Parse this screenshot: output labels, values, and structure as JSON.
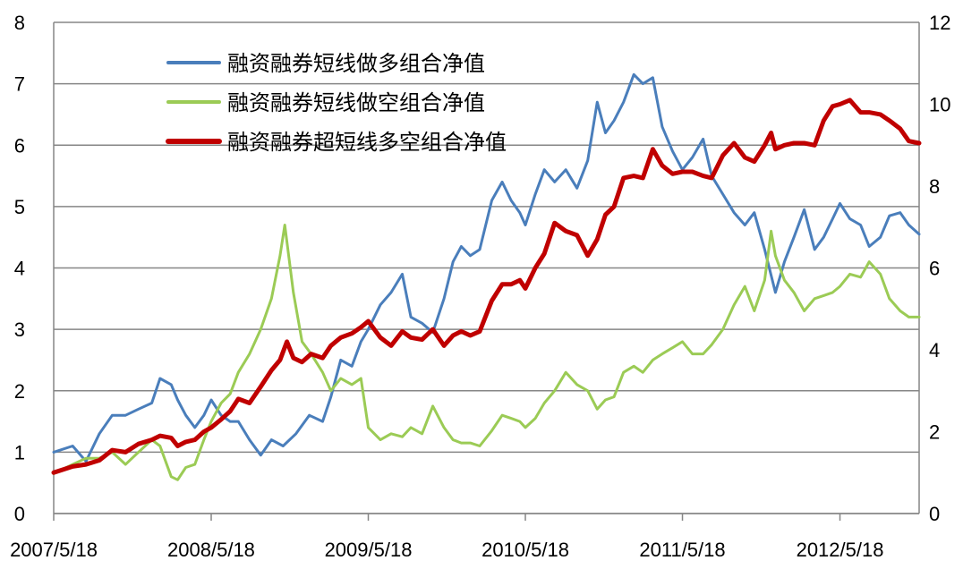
{
  "chart_data": {
    "type": "line",
    "title": "",
    "xlabel": "",
    "ylabel": "",
    "x_ticks": [
      "2007/5/18",
      "2008/5/18",
      "2009/5/18",
      "2010/5/18",
      "2011/5/18",
      "2012/5/18"
    ],
    "x_range": [
      "2007/5/18",
      "2012/11/18"
    ],
    "y_left": {
      "ylim": [
        0,
        8
      ],
      "ticks": [
        0,
        1,
        2,
        3,
        4,
        5,
        6,
        7,
        8
      ]
    },
    "y_right": {
      "ylim": [
        0,
        12
      ],
      "ticks": [
        0,
        2,
        4,
        6,
        8,
        10,
        12
      ]
    },
    "grid": "horizontal",
    "legend_position": "top-left",
    "series": [
      {
        "name": "融资融券短线做多组合净值",
        "axis": "left",
        "color": "#4a7ebb",
        "points": [
          [
            "2007/5/18",
            1.0
          ],
          [
            "2007/7/1",
            1.1
          ],
          [
            "2007/8/1",
            0.85
          ],
          [
            "2007/9/1",
            1.3
          ],
          [
            "2007/10/1",
            1.6
          ],
          [
            "2007/11/1",
            1.6
          ],
          [
            "2007/12/1",
            1.7
          ],
          [
            "2008/1/1",
            1.8
          ],
          [
            "2008/1/20",
            2.2
          ],
          [
            "2008/2/15",
            2.1
          ],
          [
            "2008/3/1",
            1.85
          ],
          [
            "2008/3/20",
            1.6
          ],
          [
            "2008/4/10",
            1.4
          ],
          [
            "2008/5/1",
            1.6
          ],
          [
            "2008/5/18",
            1.85
          ],
          [
            "2008/6/10",
            1.6
          ],
          [
            "2008/7/1",
            1.5
          ],
          [
            "2008/7/20",
            1.5
          ],
          [
            "2008/8/15",
            1.2
          ],
          [
            "2008/9/10",
            0.95
          ],
          [
            "2008/10/5",
            1.2
          ],
          [
            "2008/11/1",
            1.1
          ],
          [
            "2008/12/1",
            1.3
          ],
          [
            "2009/1/1",
            1.6
          ],
          [
            "2009/2/1",
            1.5
          ],
          [
            "2009/2/20",
            1.9
          ],
          [
            "2009/3/15",
            2.5
          ],
          [
            "2009/4/10",
            2.4
          ],
          [
            "2009/5/1",
            2.8
          ],
          [
            "2009/5/18",
            3.0
          ],
          [
            "2009/6/15",
            3.4
          ],
          [
            "2009/7/10",
            3.6
          ],
          [
            "2009/8/5",
            3.9
          ],
          [
            "2009/8/25",
            3.2
          ],
          [
            "2009/9/20",
            3.1
          ],
          [
            "2009/10/15",
            2.95
          ],
          [
            "2009/11/10",
            3.5
          ],
          [
            "2009/12/1",
            4.1
          ],
          [
            "2009/12/20",
            4.35
          ],
          [
            "2010/1/10",
            4.2
          ],
          [
            "2010/2/1",
            4.3
          ],
          [
            "2010/3/1",
            5.1
          ],
          [
            "2010/3/25",
            5.4
          ],
          [
            "2010/4/15",
            5.1
          ],
          [
            "2010/5/5",
            4.9
          ],
          [
            "2010/5/18",
            4.7
          ],
          [
            "2010/6/10",
            5.2
          ],
          [
            "2010/7/1",
            5.6
          ],
          [
            "2010/7/25",
            5.4
          ],
          [
            "2010/8/20",
            5.6
          ],
          [
            "2010/9/15",
            5.3
          ],
          [
            "2010/10/10",
            5.75
          ],
          [
            "2010/11/1",
            6.7
          ],
          [
            "2010/11/20",
            6.2
          ],
          [
            "2010/12/10",
            6.4
          ],
          [
            "2011/1/1",
            6.7
          ],
          [
            "2011/1/25",
            7.15
          ],
          [
            "2011/2/15",
            7.0
          ],
          [
            "2011/3/10",
            7.1
          ],
          [
            "2011/4/1",
            6.3
          ],
          [
            "2011/4/25",
            5.9
          ],
          [
            "2011/5/18",
            5.6
          ],
          [
            "2011/6/10",
            5.8
          ],
          [
            "2011/7/5",
            6.1
          ],
          [
            "2011/7/25",
            5.5
          ],
          [
            "2011/8/20",
            5.2
          ],
          [
            "2011/9/15",
            4.9
          ],
          [
            "2011/10/10",
            4.7
          ],
          [
            "2011/11/1",
            4.9
          ],
          [
            "2011/11/25",
            4.3
          ],
          [
            "2011/12/20",
            3.6
          ],
          [
            "2012/1/10",
            4.1
          ],
          [
            "2012/2/1",
            4.5
          ],
          [
            "2012/2/25",
            4.95
          ],
          [
            "2012/3/20",
            4.3
          ],
          [
            "2012/4/10",
            4.5
          ],
          [
            "2012/5/1",
            4.8
          ],
          [
            "2012/5/18",
            5.05
          ],
          [
            "2012/6/10",
            4.8
          ],
          [
            "2012/7/5",
            4.7
          ],
          [
            "2012/7/25",
            4.35
          ],
          [
            "2012/8/20",
            4.5
          ],
          [
            "2012/9/10",
            4.85
          ],
          [
            "2012/10/5",
            4.9
          ],
          [
            "2012/10/25",
            4.7
          ],
          [
            "2012/11/18",
            4.55
          ]
        ]
      },
      {
        "name": "融资融券短线做空组合净值",
        "axis": "left",
        "color": "#9bcb55",
        "points": [
          [
            "2007/5/18",
            0.65
          ],
          [
            "2007/7/1",
            0.8
          ],
          [
            "2007/8/1",
            0.9
          ],
          [
            "2007/9/1",
            0.9
          ],
          [
            "2007/10/1",
            1.0
          ],
          [
            "2007/11/1",
            0.8
          ],
          [
            "2007/12/1",
            1.0
          ],
          [
            "2008/1/1",
            1.2
          ],
          [
            "2008/1/20",
            1.1
          ],
          [
            "2008/2/15",
            0.6
          ],
          [
            "2008/3/1",
            0.55
          ],
          [
            "2008/3/20",
            0.75
          ],
          [
            "2008/4/10",
            0.8
          ],
          [
            "2008/5/1",
            1.2
          ],
          [
            "2008/5/18",
            1.5
          ],
          [
            "2008/6/10",
            1.8
          ],
          [
            "2008/7/1",
            1.95
          ],
          [
            "2008/7/20",
            2.3
          ],
          [
            "2008/8/15",
            2.6
          ],
          [
            "2008/9/10",
            3.0
          ],
          [
            "2008/10/5",
            3.5
          ],
          [
            "2008/10/25",
            4.2
          ],
          [
            "2008/11/5",
            4.7
          ],
          [
            "2008/11/25",
            3.6
          ],
          [
            "2008/12/15",
            2.8
          ],
          [
            "2009/1/5",
            2.6
          ],
          [
            "2009/2/1",
            2.3
          ],
          [
            "2009/2/20",
            2.0
          ],
          [
            "2009/3/15",
            2.2
          ],
          [
            "2009/4/10",
            2.1
          ],
          [
            "2009/5/1",
            2.2
          ],
          [
            "2009/5/18",
            1.4
          ],
          [
            "2009/6/15",
            1.2
          ],
          [
            "2009/7/10",
            1.3
          ],
          [
            "2009/8/5",
            1.25
          ],
          [
            "2009/8/25",
            1.4
          ],
          [
            "2009/9/20",
            1.3
          ],
          [
            "2009/10/15",
            1.75
          ],
          [
            "2009/11/10",
            1.4
          ],
          [
            "2009/12/1",
            1.2
          ],
          [
            "2009/12/20",
            1.15
          ],
          [
            "2010/1/10",
            1.15
          ],
          [
            "2010/2/1",
            1.1
          ],
          [
            "2010/3/1",
            1.35
          ],
          [
            "2010/3/25",
            1.6
          ],
          [
            "2010/4/15",
            1.55
          ],
          [
            "2010/5/5",
            1.5
          ],
          [
            "2010/5/18",
            1.4
          ],
          [
            "2010/6/10",
            1.55
          ],
          [
            "2010/7/1",
            1.8
          ],
          [
            "2010/7/25",
            2.0
          ],
          [
            "2010/8/20",
            2.3
          ],
          [
            "2010/9/15",
            2.1
          ],
          [
            "2010/10/10",
            2.0
          ],
          [
            "2010/11/1",
            1.7
          ],
          [
            "2010/11/20",
            1.85
          ],
          [
            "2010/12/10",
            1.9
          ],
          [
            "2011/1/1",
            2.3
          ],
          [
            "2011/1/25",
            2.4
          ],
          [
            "2011/2/15",
            2.3
          ],
          [
            "2011/3/10",
            2.5
          ],
          [
            "2011/4/1",
            2.6
          ],
          [
            "2011/4/25",
            2.7
          ],
          [
            "2011/5/18",
            2.8
          ],
          [
            "2011/6/10",
            2.6
          ],
          [
            "2011/7/5",
            2.6
          ],
          [
            "2011/7/25",
            2.75
          ],
          [
            "2011/8/20",
            3.0
          ],
          [
            "2011/9/15",
            3.4
          ],
          [
            "2011/10/10",
            3.7
          ],
          [
            "2011/11/1",
            3.3
          ],
          [
            "2011/11/25",
            3.8
          ],
          [
            "2011/12/10",
            4.6
          ],
          [
            "2011/12/20",
            4.2
          ],
          [
            "2012/1/10",
            3.8
          ],
          [
            "2012/2/1",
            3.6
          ],
          [
            "2012/2/25",
            3.3
          ],
          [
            "2012/3/20",
            3.5
          ],
          [
            "2012/4/10",
            3.55
          ],
          [
            "2012/5/1",
            3.6
          ],
          [
            "2012/5/18",
            3.7
          ],
          [
            "2012/6/10",
            3.9
          ],
          [
            "2012/7/5",
            3.85
          ],
          [
            "2012/7/25",
            4.1
          ],
          [
            "2012/8/20",
            3.9
          ],
          [
            "2012/9/10",
            3.5
          ],
          [
            "2012/10/5",
            3.3
          ],
          [
            "2012/10/25",
            3.2
          ],
          [
            "2012/11/18",
            3.2
          ]
        ]
      },
      {
        "name": "融资融券超短线多空组合净值",
        "axis": "right",
        "color": "#c00000",
        "points": [
          [
            "2007/5/18",
            1.0
          ],
          [
            "2007/7/1",
            1.15
          ],
          [
            "2007/8/1",
            1.2
          ],
          [
            "2007/9/1",
            1.3
          ],
          [
            "2007/10/1",
            1.55
          ],
          [
            "2007/11/1",
            1.5
          ],
          [
            "2007/12/1",
            1.7
          ],
          [
            "2008/1/1",
            1.8
          ],
          [
            "2008/1/20",
            1.9
          ],
          [
            "2008/2/15",
            1.85
          ],
          [
            "2008/3/1",
            1.65
          ],
          [
            "2008/3/20",
            1.75
          ],
          [
            "2008/4/10",
            1.8
          ],
          [
            "2008/5/1",
            2.0
          ],
          [
            "2008/5/18",
            2.1
          ],
          [
            "2008/6/10",
            2.3
          ],
          [
            "2008/7/1",
            2.5
          ],
          [
            "2008/7/20",
            2.8
          ],
          [
            "2008/8/15",
            2.7
          ],
          [
            "2008/9/10",
            3.1
          ],
          [
            "2008/10/5",
            3.5
          ],
          [
            "2008/10/25",
            3.75
          ],
          [
            "2008/11/10",
            4.2
          ],
          [
            "2008/11/25",
            3.8
          ],
          [
            "2008/12/15",
            3.7
          ],
          [
            "2009/1/5",
            3.9
          ],
          [
            "2009/2/1",
            3.8
          ],
          [
            "2009/2/20",
            4.1
          ],
          [
            "2009/3/15",
            4.3
          ],
          [
            "2009/4/10",
            4.4
          ],
          [
            "2009/5/1",
            4.55
          ],
          [
            "2009/5/18",
            4.7
          ],
          [
            "2009/6/15",
            4.3
          ],
          [
            "2009/7/10",
            4.1
          ],
          [
            "2009/8/5",
            4.45
          ],
          [
            "2009/8/25",
            4.3
          ],
          [
            "2009/9/20",
            4.25
          ],
          [
            "2009/10/15",
            4.5
          ],
          [
            "2009/11/10",
            4.1
          ],
          [
            "2009/12/1",
            4.35
          ],
          [
            "2009/12/20",
            4.45
          ],
          [
            "2010/1/10",
            4.35
          ],
          [
            "2010/2/1",
            4.45
          ],
          [
            "2010/3/1",
            5.2
          ],
          [
            "2010/3/25",
            5.6
          ],
          [
            "2010/4/15",
            5.6
          ],
          [
            "2010/5/5",
            5.7
          ],
          [
            "2010/5/18",
            5.5
          ],
          [
            "2010/6/10",
            6.0
          ],
          [
            "2010/7/1",
            6.35
          ],
          [
            "2010/7/25",
            7.1
          ],
          [
            "2010/8/20",
            6.9
          ],
          [
            "2010/9/15",
            6.8
          ],
          [
            "2010/10/10",
            6.3
          ],
          [
            "2010/11/1",
            6.7
          ],
          [
            "2010/11/20",
            7.3
          ],
          [
            "2010/12/10",
            7.5
          ],
          [
            "2011/1/1",
            8.2
          ],
          [
            "2011/1/25",
            8.25
          ],
          [
            "2011/2/15",
            8.2
          ],
          [
            "2011/3/10",
            8.9
          ],
          [
            "2011/4/1",
            8.5
          ],
          [
            "2011/4/25",
            8.3
          ],
          [
            "2011/5/18",
            8.35
          ],
          [
            "2011/6/10",
            8.35
          ],
          [
            "2011/7/5",
            8.25
          ],
          [
            "2011/7/25",
            8.2
          ],
          [
            "2011/8/20",
            8.75
          ],
          [
            "2011/9/15",
            9.05
          ],
          [
            "2011/10/10",
            8.7
          ],
          [
            "2011/11/1",
            8.6
          ],
          [
            "2011/11/25",
            9.0
          ],
          [
            "2011/12/10",
            9.3
          ],
          [
            "2011/12/20",
            8.9
          ],
          [
            "2012/1/10",
            9.0
          ],
          [
            "2012/2/1",
            9.05
          ],
          [
            "2012/2/25",
            9.05
          ],
          [
            "2012/3/20",
            9.0
          ],
          [
            "2012/4/10",
            9.6
          ],
          [
            "2012/5/1",
            9.95
          ],
          [
            "2012/5/18",
            10.0
          ],
          [
            "2012/6/10",
            10.1
          ],
          [
            "2012/7/5",
            9.8
          ],
          [
            "2012/7/25",
            9.8
          ],
          [
            "2012/8/20",
            9.75
          ],
          [
            "2012/9/10",
            9.6
          ],
          [
            "2012/10/5",
            9.4
          ],
          [
            "2012/10/25",
            9.1
          ],
          [
            "2012/11/18",
            9.05
          ]
        ]
      }
    ]
  }
}
